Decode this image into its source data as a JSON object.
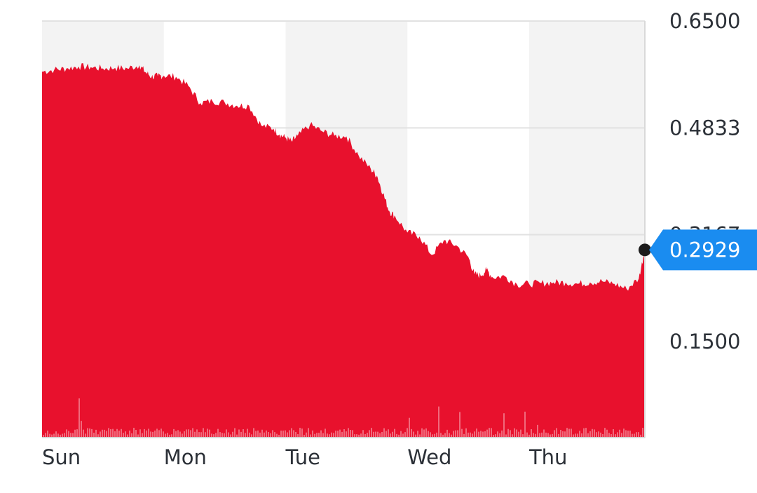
{
  "chart_data": {
    "type": "area",
    "colors": {
      "area": "#e8112d",
      "volume": "#ffffff",
      "badge": "#1a8cf0",
      "grid_band": "#f3f3f3",
      "dot": "#1c1c1c"
    },
    "grid": true,
    "x_axis": {
      "ticks": [
        {
          "label": "Sun",
          "day": 0
        },
        {
          "label": "Mon",
          "day": 1
        },
        {
          "label": "Tue",
          "day": 2
        },
        {
          "label": "Wed",
          "day": 3
        },
        {
          "label": "Thu",
          "day": 4
        }
      ],
      "range_days": [
        0,
        4.95
      ]
    },
    "y_axis": {
      "ylim": [
        0,
        0.65
      ],
      "ticks": [
        {
          "label": "0.6500",
          "value": 0.65
        },
        {
          "label": "0.4833",
          "value": 0.4833
        },
        {
          "label": "0.3167",
          "value": 0.3167,
          "obscured": true
        },
        {
          "label": "0.1500",
          "value": 0.15
        }
      ]
    },
    "series": [
      {
        "x": [
          0.0,
          0.1,
          0.2,
          0.3,
          0.4,
          0.5,
          0.6,
          0.7,
          0.8,
          0.85,
          0.9,
          0.95,
          1.0,
          1.1,
          1.2,
          1.3,
          1.4,
          1.5,
          1.6,
          1.7,
          1.8,
          1.9,
          1.95,
          2.0,
          2.05,
          2.1,
          2.2,
          2.3,
          2.4,
          2.5,
          2.6,
          2.7,
          2.75,
          2.8,
          2.85,
          2.9,
          3.0,
          3.1,
          3.2,
          3.3,
          3.4,
          3.5,
          3.55,
          3.6,
          3.65,
          3.7,
          3.8,
          3.9,
          4.0,
          4.1,
          4.2,
          4.3,
          4.4,
          4.5,
          4.6,
          4.7,
          4.8,
          4.9,
          4.95
        ],
        "y": [
          0.571,
          0.574,
          0.576,
          0.579,
          0.578,
          0.576,
          0.577,
          0.576,
          0.581,
          0.57,
          0.563,
          0.564,
          0.565,
          0.563,
          0.549,
          0.522,
          0.525,
          0.523,
          0.518,
          0.518,
          0.487,
          0.482,
          0.473,
          0.468,
          0.462,
          0.471,
          0.488,
          0.478,
          0.471,
          0.47,
          0.44,
          0.419,
          0.409,
          0.381,
          0.354,
          0.345,
          0.32,
          0.314,
          0.285,
          0.308,
          0.3,
          0.282,
          0.255,
          0.253,
          0.262,
          0.25,
          0.252,
          0.239,
          0.24,
          0.241,
          0.242,
          0.242,
          0.24,
          0.242,
          0.244,
          0.24,
          0.232,
          0.248,
          0.2929
        ],
        "values": [
          0.571,
          0.574,
          0.576,
          0.579,
          0.578,
          0.576,
          0.577,
          0.576,
          0.581,
          0.57,
          0.563,
          0.564,
          0.565,
          0.563,
          0.549,
          0.522,
          0.525,
          0.523,
          0.518,
          0.518,
          0.487,
          0.482,
          0.473,
          0.468,
          0.462,
          0.471,
          0.488,
          0.478,
          0.471,
          0.47,
          0.44,
          0.419,
          0.409,
          0.381,
          0.354,
          0.345,
          0.32,
          0.314,
          0.285,
          0.308,
          0.3,
          0.282,
          0.255,
          0.253,
          0.262,
          0.25,
          0.252,
          0.239,
          0.24,
          0.241,
          0.242,
          0.242,
          0.24,
          0.242,
          0.244,
          0.24,
          0.232,
          0.248,
          0.2929
        ]
      }
    ],
    "last_value": {
      "label": "0.2929",
      "value": 0.2929
    }
  }
}
